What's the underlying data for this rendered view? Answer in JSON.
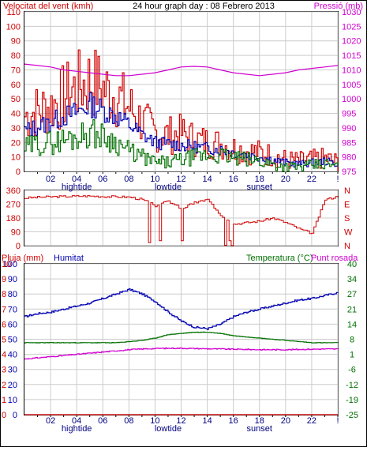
{
  "header": {
    "left_title": "Velocitat del vent (kmh)",
    "center_title": "24 hour graph day : 08 Febrero 2013",
    "right_title": "Pressió (mb)"
  },
  "bottom_headers": {
    "rain": "Pluja (mm)",
    "humidity": "Humitat",
    "temperature": "Temperatura (°C)",
    "dew": "Punt rosada"
  },
  "hour_labels": [
    "02",
    "04",
    "06",
    "08",
    "10",
    "12",
    "14",
    "16",
    "18",
    "20",
    "22",
    "!"
  ],
  "annotations": {
    "hightide": "hightide",
    "lowtide": "lowtide",
    "sunset": "sunset"
  },
  "colors": {
    "wind": "#d00000",
    "gust_avg": "#0000b0",
    "wind_low": "#007000",
    "pressure": "#d000d0",
    "dir": "#d00000",
    "humidity": "#0000b0",
    "temp": "#007000",
    "dew": "#d000d0",
    "rain": "#d00000",
    "grid": "#cccccc",
    "frame": "#000000"
  },
  "chart_data": [
    {
      "type": "line",
      "title": "24 hour graph day : 08 Febrero 2013",
      "ylabel_left": "Velocitat del vent (kmh)",
      "ylabel_right": "Pressió (mb)",
      "ylim_left": [
        0,
        110
      ],
      "ylim_right": [
        975,
        1030
      ],
      "left_ticks": [
        "0",
        "10",
        "20",
        "30",
        "40",
        "50",
        "60",
        "70",
        "80",
        "90",
        "100",
        "110"
      ],
      "right_ticks": [
        "975",
        "980",
        "985",
        "990",
        "995",
        "1000",
        "1005",
        "1010",
        "1015",
        "1020",
        "1025",
        "1030"
      ],
      "x_hours": [
        0,
        1,
        2,
        3,
        4,
        5,
        6,
        7,
        8,
        9,
        10,
        11,
        12,
        13,
        14,
        15,
        16,
        17,
        18,
        19,
        20,
        21,
        22,
        23,
        24
      ],
      "series": [
        {
          "name": "Velocitat del vent (kmh)",
          "axis": "left",
          "values": [
            38,
            42,
            45,
            52,
            58,
            63,
            57,
            52,
            44,
            34,
            27,
            25,
            26,
            22,
            20,
            19,
            16,
            14,
            13,
            11,
            8,
            7,
            8,
            9,
            6
          ]
        },
        {
          "axis": "left",
          "values": [
            28,
            31,
            34,
            38,
            41,
            46,
            42,
            38,
            32,
            25,
            20,
            19,
            18,
            17,
            16,
            15,
            13,
            11,
            10,
            8,
            6,
            5,
            6,
            7,
            5
          ]
        },
        {
          "axis": "left",
          "values": [
            16,
            19,
            20,
            22,
            24,
            27,
            24,
            20,
            14,
            10,
            6,
            6,
            8,
            10,
            11,
            11,
            9,
            8,
            7,
            5,
            3,
            3,
            4,
            5,
            3
          ]
        },
        {
          "name": "Pressió (mb)",
          "axis": "right",
          "values": [
            1012,
            1011.5,
            1011,
            1010,
            1009.5,
            1009,
            1008.5,
            1008,
            1008,
            1008.5,
            1009,
            1010,
            1011,
            1011.2,
            1011,
            1010,
            1009,
            1008.5,
            1008,
            1008.5,
            1009,
            1010,
            1010.5,
            1011,
            1011.5
          ]
        }
      ]
    },
    {
      "type": "line",
      "title": "",
      "ylim": [
        0,
        360
      ],
      "left_ticks": [
        "0",
        "90",
        "180",
        "270",
        "360"
      ],
      "right_ticks": [
        "N",
        "W",
        "S",
        "E",
        "N"
      ],
      "x_hours": [
        0,
        1,
        2,
        3,
        4,
        5,
        6,
        7,
        8,
        9,
        10,
        11,
        12,
        13,
        14,
        15,
        16,
        17,
        18,
        19,
        20,
        21,
        22,
        23,
        24
      ],
      "series": [
        {
          "values": [
            310,
            315,
            318,
            320,
            322,
            323,
            320,
            318,
            316,
            300,
            260,
            290,
            240,
            280,
            300,
            200,
            140,
            150,
            160,
            180,
            150,
            110,
            80,
            300,
            320
          ]
        }
      ]
    },
    {
      "type": "line",
      "title": "",
      "ylim_left_rain": [
        0,
        10
      ],
      "ylim_left_humidity": [
        0,
        100
      ],
      "ylim_right": [
        -25,
        40
      ],
      "rain_ticks": [
        "0",
        "1",
        "2",
        "3",
        "4",
        "5",
        "6",
        "7",
        "8",
        "9",
        "10"
      ],
      "humidity_ticks": [
        "0",
        "10",
        "20",
        "30",
        "40",
        "50",
        "60",
        "70",
        "80",
        "90",
        "100"
      ],
      "right_ticks": [
        "-25",
        "-19",
        "-12",
        "-6",
        "1",
        "8",
        "14",
        "21",
        "27",
        "34",
        "40"
      ],
      "x_hours": [
        0,
        1,
        2,
        3,
        4,
        5,
        6,
        7,
        8,
        9,
        10,
        11,
        12,
        13,
        14,
        15,
        16,
        17,
        18,
        19,
        20,
        21,
        22,
        23,
        24
      ],
      "series": [
        {
          "name": "Humitat",
          "axis": "humidity",
          "values": [
            65,
            67,
            68,
            70,
            72,
            74,
            77,
            80,
            83,
            80,
            75,
            68,
            62,
            58,
            57,
            60,
            65,
            68,
            70,
            72,
            74,
            76,
            77,
            79,
            81
          ]
        },
        {
          "name": "Temperatura (°C)",
          "axis": "right",
          "values": [
            6,
            6,
            6,
            6,
            6,
            6,
            6,
            6,
            6.5,
            7,
            8,
            9.5,
            10,
            10.5,
            10.5,
            10,
            9,
            8.5,
            8,
            7.5,
            7,
            6.5,
            6,
            6,
            6
          ]
        },
        {
          "name": "Punt rosada",
          "axis": "right",
          "values": [
            -1,
            -0.5,
            0,
            0.5,
            1,
            1.5,
            2,
            2.5,
            3,
            3.3,
            3.5,
            3.6,
            3.6,
            3.5,
            3.4,
            3.3,
            3.2,
            3.1,
            3,
            3,
            3,
            3.1,
            3.2,
            3.3,
            3.3
          ]
        },
        {
          "name": "Pluja (mm)",
          "axis": "rain",
          "values": [
            0,
            0,
            0,
            0,
            0,
            0,
            0,
            0,
            0,
            0,
            0,
            0,
            0,
            0,
            0,
            0,
            0,
            0,
            0,
            0,
            0,
            0,
            0,
            0,
            0
          ]
        }
      ]
    }
  ]
}
